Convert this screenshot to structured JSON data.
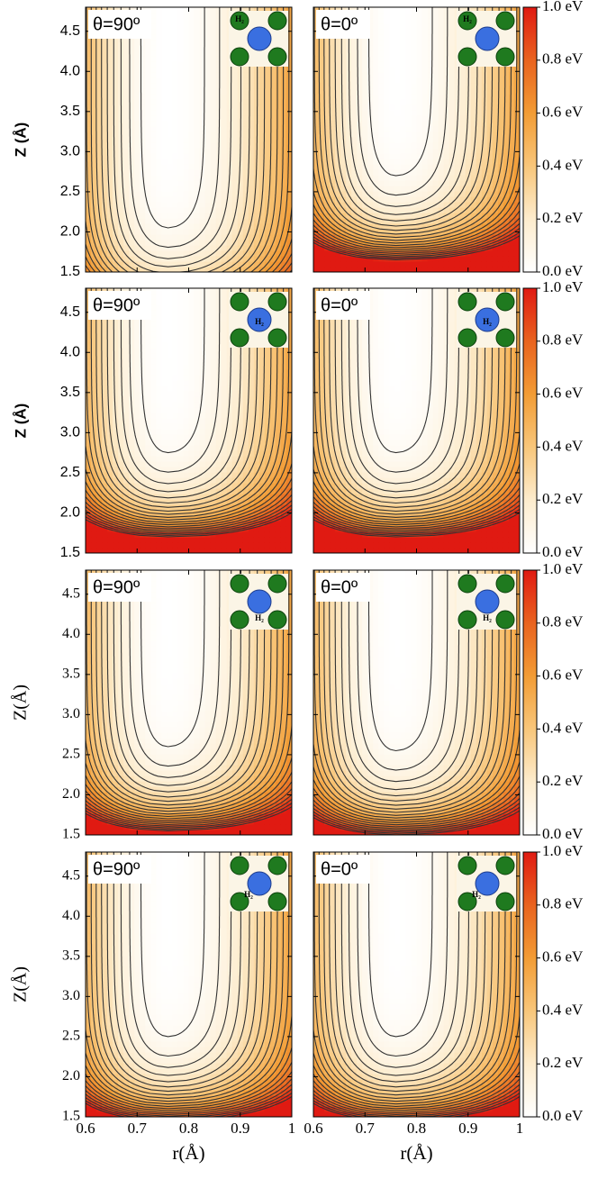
{
  "colormap": [
    "#ffffff",
    "#fdeccd",
    "#f8c67a",
    "#f29c35",
    "#e9631f",
    "#e01a12"
  ],
  "chart_data": [
    {
      "type": "contour",
      "label": "θ=90º",
      "inset_label": "H₂",
      "ylabel": "Z (Å)",
      "xlim": [
        0.6,
        1.0
      ],
      "ylim": [
        1.5,
        4.8
      ],
      "xticks": [
        0.6,
        0.7,
        0.8,
        0.9,
        1
      ],
      "yticks": [
        1.5,
        {
          "value": 2,
          "label": "2.0"
        },
        2.5,
        {
          "value": 3,
          "label": "3.0"
        },
        3.5,
        {
          "value": 4,
          "label": "4.0"
        },
        4.5
      ],
      "contour_tip_z": 2.05
    },
    {
      "type": "contour",
      "label": "θ=0º",
      "inset_label": "H₂",
      "xlim": [
        0.6,
        1.0
      ],
      "ylim": [
        1.5,
        4.8
      ],
      "xticks": [
        0.6,
        0.7,
        0.8,
        0.9,
        1
      ],
      "yticks": [
        1.5,
        {
          "value": 2,
          "label": "2.0"
        },
        2.5,
        {
          "value": 3,
          "label": "3.0"
        },
        3.5,
        {
          "value": 4,
          "label": "4.0"
        },
        4.5
      ],
      "contour_tip_z": 2.7,
      "zlim": [
        0,
        1
      ],
      "zticks": [
        {
          "value": 0,
          "label": "0.0 eV"
        },
        {
          "value": 0.2,
          "label": "0.2 eV"
        },
        {
          "value": 0.4,
          "label": "0.4 eV"
        },
        {
          "value": 0.6,
          "label": "0.6 eV"
        },
        {
          "value": 0.8,
          "label": "0.8 eV"
        },
        {
          "value": 1,
          "label": "1.0 eV"
        }
      ]
    },
    {
      "type": "contour",
      "label": "θ=90º",
      "inset_label": "H₂",
      "ylabel": "Z (Å)",
      "xlim": [
        0.6,
        1.0
      ],
      "ylim": [
        1.5,
        4.8
      ],
      "xticks": [
        0.6,
        0.7,
        0.8,
        0.9,
        1
      ],
      "yticks": [
        1.5,
        {
          "value": 2,
          "label": "2.0"
        },
        2.5,
        {
          "value": 3,
          "label": "3.0"
        },
        3.5,
        {
          "value": 4,
          "label": "4.0"
        },
        4.5
      ],
      "contour_tip_z": 2.75
    },
    {
      "type": "contour",
      "label": "θ=0º",
      "inset_label": "H₂",
      "xlim": [
        0.6,
        1.0
      ],
      "ylim": [
        1.5,
        4.8
      ],
      "xticks": [
        0.6,
        0.7,
        0.8,
        0.9,
        1
      ],
      "yticks": [
        1.5,
        {
          "value": 2,
          "label": "2.0"
        },
        2.5,
        {
          "value": 3,
          "label": "3.0"
        },
        3.5,
        {
          "value": 4,
          "label": "4.0"
        },
        4.5
      ],
      "contour_tip_z": 2.75,
      "zlim": [
        0,
        1
      ],
      "zticks": [
        {
          "value": 0,
          "label": "0.0 eV"
        },
        {
          "value": 0.2,
          "label": "0.2 eV"
        },
        {
          "value": 0.4,
          "label": "0.4 eV"
        },
        {
          "value": 0.6,
          "label": "0.6 eV"
        },
        {
          "value": 0.8,
          "label": "0.8 eV"
        },
        {
          "value": 1,
          "label": "1.0 eV"
        }
      ]
    },
    {
      "type": "contour",
      "label": "θ=90º",
      "inset_label": "H₂",
      "ylabel": "Z(Å)",
      "xlim": [
        0.6,
        1.0
      ],
      "ylim": [
        1.5,
        4.8
      ],
      "xticks": [
        0.6,
        0.7,
        0.8,
        0.9,
        1
      ],
      "yticks": [
        1.5,
        {
          "value": 2,
          "label": "2.0"
        },
        2.5,
        {
          "value": 3,
          "label": "3.0"
        },
        3.5,
        {
          "value": 4,
          "label": "4.0"
        },
        4.5
      ],
      "contour_tip_z": 2.6
    },
    {
      "type": "contour",
      "label": "θ=0º",
      "inset_label": "H₂",
      "xlim": [
        0.6,
        1.0
      ],
      "ylim": [
        1.5,
        4.8
      ],
      "xticks": [
        0.6,
        0.7,
        0.8,
        0.9,
        1
      ],
      "yticks": [
        1.5,
        {
          "value": 2,
          "label": "2.0"
        },
        2.5,
        {
          "value": 3,
          "label": "3.0"
        },
        3.5,
        {
          "value": 4,
          "label": "4.0"
        },
        4.5
      ],
      "contour_tip_z": 2.55,
      "zlim": [
        0,
        1
      ],
      "zticks": [
        {
          "value": 0,
          "label": "0.0 eV"
        },
        {
          "value": 0.2,
          "label": "0.2 eV"
        },
        {
          "value": 0.4,
          "label": "0.4 eV"
        },
        {
          "value": 0.6,
          "label": "0.6 eV"
        },
        {
          "value": 0.8,
          "label": "0.8 eV"
        },
        {
          "value": 1,
          "label": "1.0 eV"
        }
      ]
    },
    {
      "type": "contour",
      "label": "θ=90º",
      "inset_label": "H₂",
      "ylabel": "Z(Å)",
      "xlabel": "r(Å)",
      "xlim": [
        0.6,
        1.0
      ],
      "ylim": [
        1.5,
        4.8
      ],
      "xticks": [
        0.6,
        0.7,
        0.8,
        0.9,
        1
      ],
      "yticks": [
        1.5,
        {
          "value": 2,
          "label": "2.0"
        },
        2.5,
        {
          "value": 3,
          "label": "3.0"
        },
        3.5,
        {
          "value": 4,
          "label": "4.0"
        },
        4.5
      ],
      "contour_tip_z": 2.5
    },
    {
      "type": "contour",
      "label": "θ=0º",
      "inset_label": "H₂",
      "xlabel": "r(Å)",
      "xlim": [
        0.6,
        1.0
      ],
      "ylim": [
        1.5,
        4.8
      ],
      "xticks": [
        0.6,
        0.7,
        0.8,
        0.9,
        1
      ],
      "yticks": [
        1.5,
        {
          "value": 2,
          "label": "2.0"
        },
        2.5,
        {
          "value": 3,
          "label": "3.0"
        },
        3.5,
        {
          "value": 4,
          "label": "4.0"
        },
        4.5
      ],
      "contour_tip_z": 2.5,
      "zlim": [
        0,
        1
      ],
      "zticks": [
        {
          "value": 0,
          "label": "0.0 eV"
        },
        {
          "value": 0.2,
          "label": "0.2 eV"
        },
        {
          "value": 0.4,
          "label": "0.4 eV"
        },
        {
          "value": 0.6,
          "label": "0.6 eV"
        },
        {
          "value": 0.8,
          "label": "0.8 eV"
        },
        {
          "value": 1,
          "label": "1.0 eV"
        }
      ]
    }
  ]
}
